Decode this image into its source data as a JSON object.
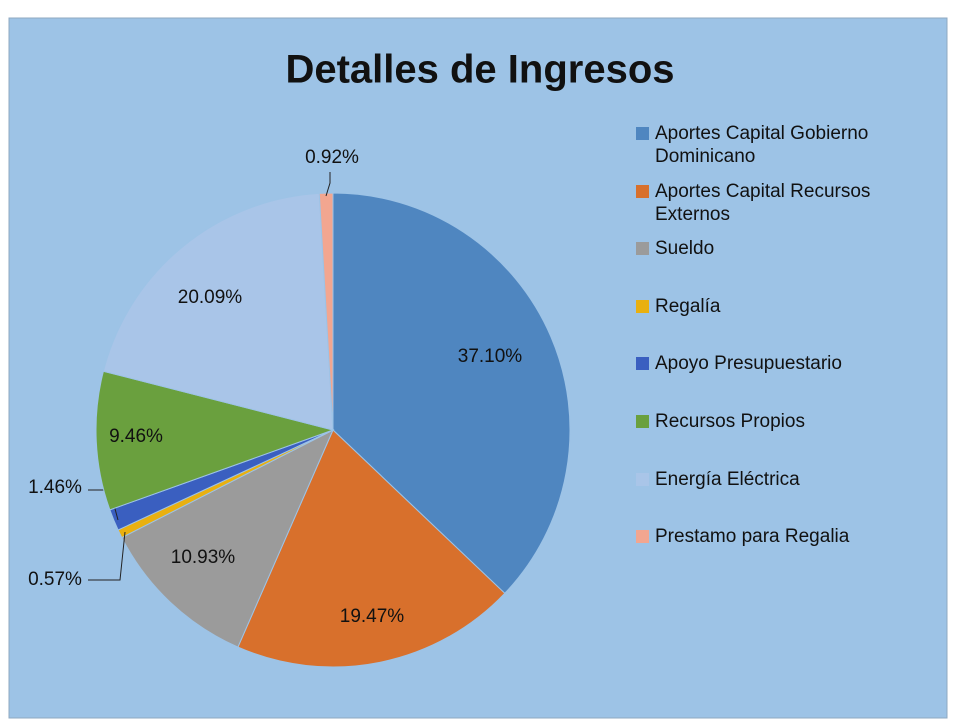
{
  "chart_data": {
    "type": "pie",
    "title": "Detalles de Ingresos",
    "categories": [
      "Aportes Capital Gobierno Dominicano",
      "Aportes Capital Recursos Externos",
      "Sueldo",
      "Regalía",
      "Apoyo Presupuestario",
      "Recursos Propios",
      "Energía Eléctrica",
      "Prestamo para  Regalia"
    ],
    "values": [
      37.1,
      19.47,
      10.93,
      0.57,
      1.46,
      9.46,
      20.09,
      0.92
    ],
    "value_labels": [
      "37.10%",
      "19.47%",
      "10.93%",
      "0.57%",
      "1.46%",
      "9.46%",
      "20.09%",
      "0.92%"
    ],
    "colors": [
      "#4f86c0",
      "#d8702c",
      "#9b9b9b",
      "#e9b010",
      "#3a5fc0",
      "#6aa03e",
      "#a9c5e8",
      "#f2a690"
    ],
    "legend": "right"
  }
}
